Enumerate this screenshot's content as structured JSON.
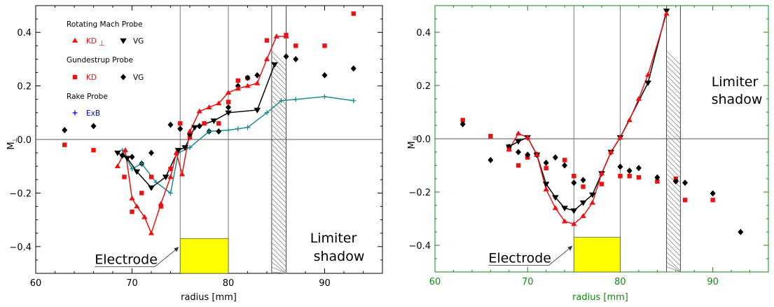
{
  "colors": {
    "red": "#ee1111",
    "black": "#000000",
    "teal": "#1a8c94",
    "blue": "#0000cc",
    "electrode": "#ffff00",
    "frame_left": "#000000",
    "frame_right": "#118811",
    "grid": "#888888"
  },
  "chart_data": [
    {
      "type": "scatter",
      "id": "left",
      "ylabel": "M",
      "ylabel_sub": "⊥",
      "xlabel": "radius [mm]",
      "xlim": [
        60,
        96
      ],
      "ylim": [
        -0.5,
        0.5
      ],
      "xticks": [
        60,
        70,
        80,
        90
      ],
      "yticks": [
        -0.4,
        -0.2,
        0.0,
        0.2,
        0.4
      ],
      "ytick_labels": [
        "−0.4",
        "−0.2",
        "0.0",
        "0.2",
        "0.4"
      ],
      "vlines": [
        75,
        80
      ],
      "electrode": {
        "x0": 75,
        "x1": 80,
        "y0": -0.5,
        "y1": -0.37,
        "label": "Electrode"
      },
      "shadow": {
        "x0": 84.5,
        "x1": 86,
        "label_line1": "Limiter",
        "label_line2": "shadow"
      },
      "legend": {
        "group1_title": "Rotating Mach Probe",
        "kd_label": "KD",
        "kd_sub": "⊥",
        "vg_label": "VG",
        "group2_title": "Gundestrup Probe",
        "gkd_label": "KD",
        "gvg_label": "VG",
        "group3_title": "Rake Probe",
        "exb_label": "ExB"
      },
      "series": [
        {
          "name": "KD⊥",
          "kind": "rotating-kd",
          "x": [
            68.5,
            69.3,
            70.0,
            70.5,
            71.3,
            72.0,
            73.0,
            74.0,
            74.6,
            75.2,
            76.0,
            77.0,
            78.0,
            79.0,
            80.0,
            81.0,
            82.0,
            83.0,
            84.0,
            85.0,
            86.0
          ],
          "y": [
            -0.1,
            -0.04,
            -0.22,
            -0.25,
            -0.29,
            -0.35,
            -0.24,
            -0.14,
            -0.05,
            -0.13,
            0.03,
            0.105,
            0.12,
            0.135,
            0.175,
            0.19,
            0.2,
            0.21,
            0.3,
            0.385,
            0.385
          ]
        },
        {
          "name": "VG",
          "kind": "rotating-vg",
          "x": [
            68.5,
            69.5,
            70.5,
            72.0,
            73.5,
            74.8,
            75.5,
            76.5,
            78.5,
            80.0,
            83.0,
            84.8
          ],
          "y": [
            -0.05,
            -0.07,
            -0.12,
            -0.18,
            -0.14,
            -0.04,
            -0.03,
            0.045,
            0.07,
            0.1,
            0.11,
            0.28
          ]
        },
        {
          "name": "ExB",
          "kind": "rake-exb",
          "x": [
            69.0,
            70.0,
            71.0,
            72.5,
            74.0,
            74.8,
            76.0,
            78.0,
            80.0,
            81.0,
            82.0,
            84.0,
            85.5,
            87.0,
            90.0,
            93.0
          ],
          "y": [
            -0.04,
            -0.11,
            -0.09,
            -0.16,
            -0.2,
            -0.05,
            -0.03,
            0.03,
            0.035,
            0.04,
            0.045,
            0.1,
            0.145,
            0.15,
            0.16,
            0.145
          ]
        },
        {
          "name": "Gundestrup KD",
          "kind": "gundestrup-kd",
          "x": [
            63,
            66,
            69.2,
            70.0,
            71.0,
            72.0,
            73.0,
            74.0,
            75.0,
            76.0,
            77.5,
            79.0,
            80.0,
            81.0,
            82.0,
            84.0,
            86.0,
            87.0,
            90.0,
            93.0
          ],
          "y": [
            -0.02,
            -0.04,
            -0.14,
            -0.27,
            -0.2,
            -0.14,
            -0.25,
            -0.11,
            0.06,
            0.01,
            0.06,
            0.06,
            0.14,
            0.22,
            0.23,
            0.37,
            0.39,
            0.35,
            0.35,
            0.47
          ]
        },
        {
          "name": "Gundestrup VG",
          "kind": "gundestrup-vg",
          "x": [
            63,
            66,
            69.0,
            70.0,
            71.0,
            72.0,
            74.0,
            75.0,
            76.0,
            77.0,
            78.0,
            79.0,
            80.0,
            81.0,
            82.0,
            83.0,
            86.0,
            87.0,
            90.0,
            93.0
          ],
          "y": [
            0.035,
            0.05,
            -0.06,
            -0.065,
            -0.09,
            -0.05,
            0.055,
            0.04,
            0.02,
            0.05,
            0.03,
            0.03,
            0.12,
            0.2,
            0.23,
            0.24,
            0.31,
            0.3,
            0.24,
            0.265
          ]
        }
      ]
    },
    {
      "type": "scatter",
      "id": "right",
      "ylabel": "M",
      "ylabel_sub": "II",
      "xlabel": "radius [mm]",
      "xlim": [
        60,
        96
      ],
      "ylim": [
        -0.5,
        0.5
      ],
      "xticks": [
        60,
        70,
        80,
        90
      ],
      "yticks": [
        -0.4,
        -0.2,
        0.0,
        0.2,
        0.4
      ],
      "ytick_labels": [
        "−0.4",
        "−0.2",
        "0.0",
        "0.2",
        "0.4"
      ],
      "vlines": [
        75,
        80
      ],
      "electrode": {
        "x0": 75,
        "x1": 80,
        "y0": -0.5,
        "y1": -0.37,
        "label": "Electrode"
      },
      "shadow": {
        "x0": 85,
        "x1": 86.5,
        "label_line1": "Limiter",
        "label_line2": "shadow"
      },
      "series": [
        {
          "name": "KD",
          "kind": "line-red",
          "x": [
            68,
            69,
            70,
            71,
            72,
            73,
            74,
            75,
            76,
            77,
            78,
            79,
            80,
            81,
            82,
            83,
            85
          ],
          "y": [
            -0.04,
            0.02,
            0.005,
            -0.06,
            -0.19,
            -0.26,
            -0.31,
            -0.32,
            -0.29,
            -0.24,
            -0.13,
            -0.05,
            0.005,
            0.07,
            0.15,
            0.24,
            0.47
          ]
        },
        {
          "name": "VG",
          "kind": "line-black",
          "x": [
            68,
            69,
            70,
            71,
            72,
            73,
            74,
            75,
            76,
            77,
            78,
            79,
            80,
            83,
            85
          ],
          "y": [
            -0.03,
            -0.01,
            0.005,
            -0.06,
            -0.17,
            -0.22,
            -0.26,
            -0.27,
            -0.24,
            -0.21,
            -0.13,
            -0.05,
            0.005,
            0.21,
            0.48
          ]
        },
        {
          "name": "Gundestrup KD",
          "kind": "scatter-red",
          "x": [
            63,
            66,
            68,
            69,
            70,
            71,
            72,
            74,
            75,
            76,
            78,
            80,
            81,
            82,
            84,
            86,
            87,
            90
          ],
          "y": [
            0.07,
            0.01,
            -0.04,
            -0.1,
            -0.07,
            -0.06,
            -0.11,
            -0.08,
            -0.14,
            -0.18,
            -0.17,
            -0.14,
            -0.14,
            -0.145,
            -0.16,
            -0.15,
            -0.23,
            -0.23
          ]
        },
        {
          "name": "Gundestrup VG",
          "kind": "scatter-black",
          "x": [
            63,
            66,
            68,
            69,
            70,
            71,
            72,
            73,
            74,
            75,
            76,
            80,
            81,
            82,
            84,
            86,
            87,
            90,
            93
          ],
          "y": [
            0.055,
            -0.08,
            -0.03,
            -0.05,
            -0.06,
            -0.06,
            -0.09,
            -0.07,
            -0.1,
            -0.165,
            -0.155,
            -0.105,
            -0.12,
            -0.11,
            -0.145,
            -0.16,
            -0.165,
            -0.205,
            -0.35
          ]
        }
      ]
    }
  ]
}
